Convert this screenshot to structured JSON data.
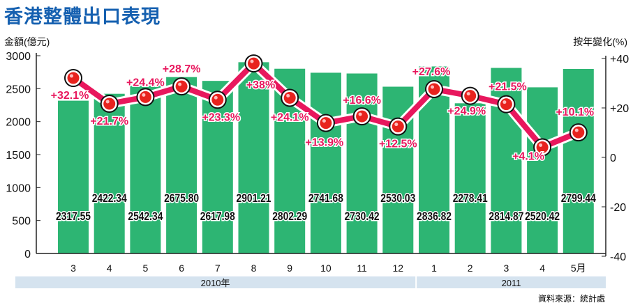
{
  "title": "香港整體出口表現",
  "source": "資料來源：統計處",
  "colors": {
    "bar": "#2db573",
    "line": "#e8175d",
    "label_pct": "#e8175d",
    "band": "#d5e3ef",
    "title": "#1560b0"
  },
  "chart_data": {
    "type": "bar+line",
    "title": "香港整體出口表現",
    "ylabel_left": "金額(億元)",
    "ylabel_right": "按年變化(%)",
    "ylim_left": [
      0,
      3000
    ],
    "ylim_right": [
      -40,
      40
    ],
    "yticks_left": [
      "0",
      "500",
      "1000",
      "1500",
      "2000",
      "2500",
      "3000"
    ],
    "yticks_right": [
      "-40",
      "-20",
      "0",
      "+20",
      "+40"
    ],
    "categories": [
      "3",
      "4",
      "5",
      "6",
      "7",
      "8",
      "9",
      "10",
      "11",
      "12",
      "1",
      "2",
      "3",
      "4",
      "5月"
    ],
    "year_groups": [
      {
        "label": "2010年",
        "count": 10
      },
      {
        "label": "2011",
        "count": 5
      }
    ],
    "series": [
      {
        "name": "金額(億元)",
        "type": "bar",
        "values": [
          2317.55,
          2422.34,
          2542.34,
          2675.8,
          2617.98,
          2901.21,
          2802.29,
          2741.68,
          2730.42,
          2530.03,
          2836.82,
          2278.41,
          2814.87,
          2520.42,
          2799.44
        ],
        "labels": [
          "2317.55",
          "2422.34",
          "2542.34",
          "2675.80",
          "2617.98",
          "2901.21",
          "2802.29",
          "2741.68",
          "2730.42",
          "2530.03",
          "2836.82",
          "2278.41",
          "2814.87",
          "2520.42",
          "2799.44"
        ]
      },
      {
        "name": "按年變化(%)",
        "type": "line",
        "values": [
          32.1,
          21.7,
          24.4,
          28.7,
          23.3,
          38,
          24.1,
          13.9,
          16.6,
          12.5,
          27.6,
          24.9,
          21.5,
          4.1,
          10.1
        ],
        "labels": [
          "+32.1%",
          "+21.7%",
          "+24.4%",
          "+28.7%",
          "+23.3%",
          "+38%",
          "+24.1%",
          "+13.9%",
          "+16.6%",
          "+12.5%",
          "+27.6%",
          "+24.9%",
          "+21.5%",
          "+4.1%",
          "+10.1%"
        ]
      }
    ]
  }
}
